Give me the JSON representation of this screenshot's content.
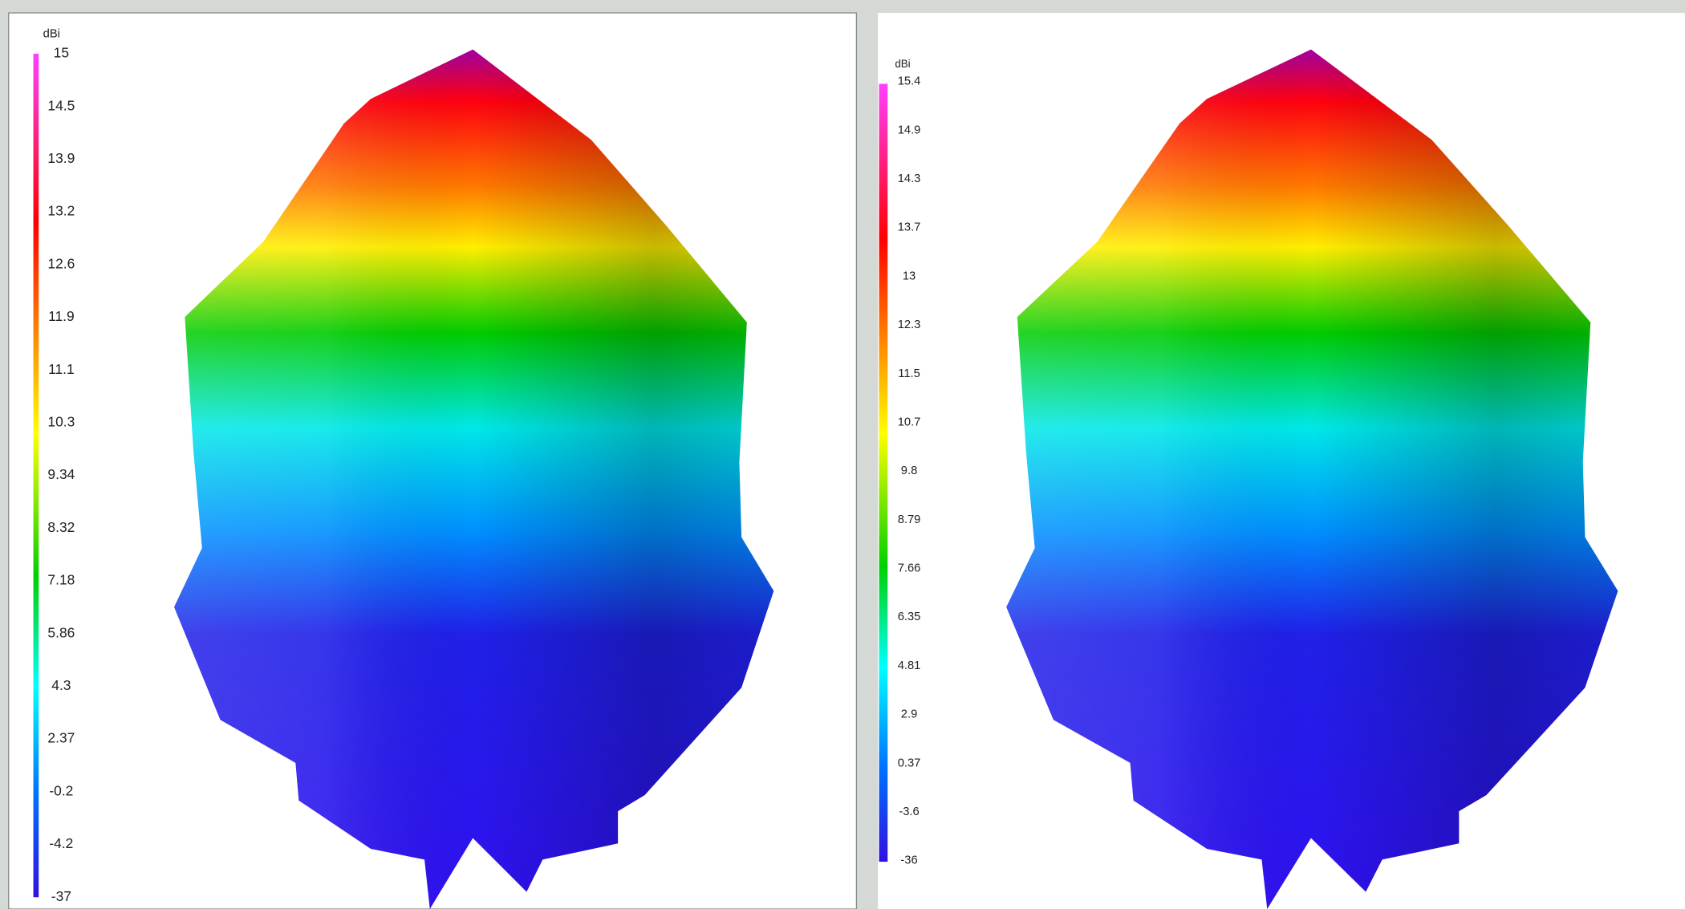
{
  "panels": [
    {
      "unit": "dBi",
      "scale": [
        "15",
        "14.5",
        "13.9",
        "13.2",
        "12.6",
        "11.9",
        "11.1",
        "10.3",
        "9.34",
        "8.32",
        "7.18",
        "5.86",
        "4.3",
        "2.37",
        "-0.2",
        "-4.2",
        "-37"
      ]
    },
    {
      "unit": "dBi",
      "scale": [
        "15.4",
        "14.9",
        "14.3",
        "13.7",
        "13",
        "12.3",
        "11.5",
        "10.7",
        "9.8",
        "8.79",
        "7.66",
        "6.35",
        "4.81",
        "2.9",
        "0.37",
        "-3.6",
        "-36"
      ]
    }
  ]
}
